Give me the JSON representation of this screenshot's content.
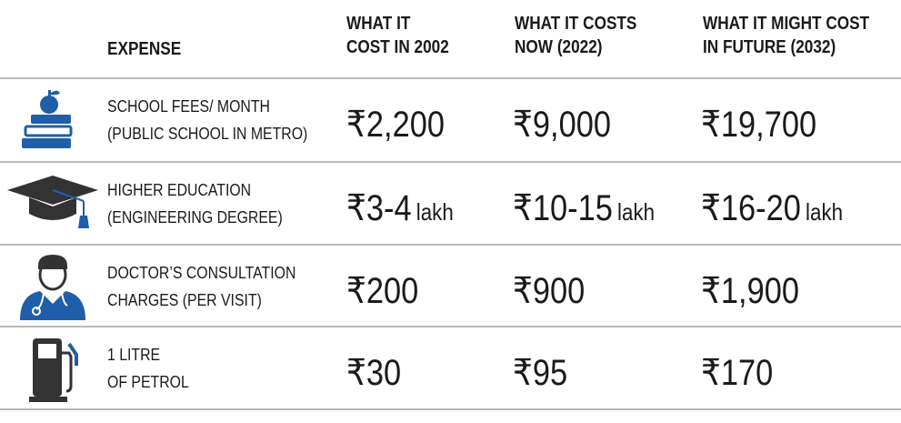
{
  "header": {
    "expense": "EXPENSE",
    "col2002_line1": "WHAT IT",
    "col2002_line2": "COST IN 2002",
    "col2022_line1": "WHAT IT COSTS",
    "col2022_line2": "NOW (2022)",
    "col2032_line1": "WHAT IT MIGHT COST",
    "col2032_line2": "IN FUTURE (2032)"
  },
  "rows": [
    {
      "icon": "books-apple-icon",
      "label_line1": "SCHOOL FEES/ MONTH",
      "label_line2": "(PUBLIC SCHOOL IN METRO)",
      "v2002": "₹2,200",
      "u2002": "",
      "v2022": "₹9,000",
      "u2022": "",
      "v2032": "₹19,700",
      "u2032": ""
    },
    {
      "icon": "graduation-cap-icon",
      "label_line1": "HIGHER EDUCATION",
      "label_line2": "(ENGINEERING DEGREE)",
      "v2002": "₹3-4",
      "u2002": "lakh",
      "v2022": "₹10-15",
      "u2022": "lakh",
      "v2032": "₹16-20",
      "u2032": "lakh"
    },
    {
      "icon": "doctor-icon",
      "label_line1": "DOCTOR’S CONSULTATION",
      "label_line2": "CHARGES (PER VISIT)",
      "v2002": "₹200",
      "u2002": "",
      "v2022": "₹900",
      "u2022": "",
      "v2032": "₹1,900",
      "u2032": ""
    },
    {
      "icon": "fuel-pump-icon",
      "label_line1": "1 LITRE",
      "label_line2": "OF PETROL",
      "v2002": "₹30",
      "u2002": "",
      "v2022": "₹95",
      "u2022": "",
      "v2032": "₹170",
      "u2032": ""
    }
  ],
  "colors": {
    "icon_blue": "#1f5ea8",
    "icon_dark": "#333333",
    "rule": "#b8b8b8"
  }
}
